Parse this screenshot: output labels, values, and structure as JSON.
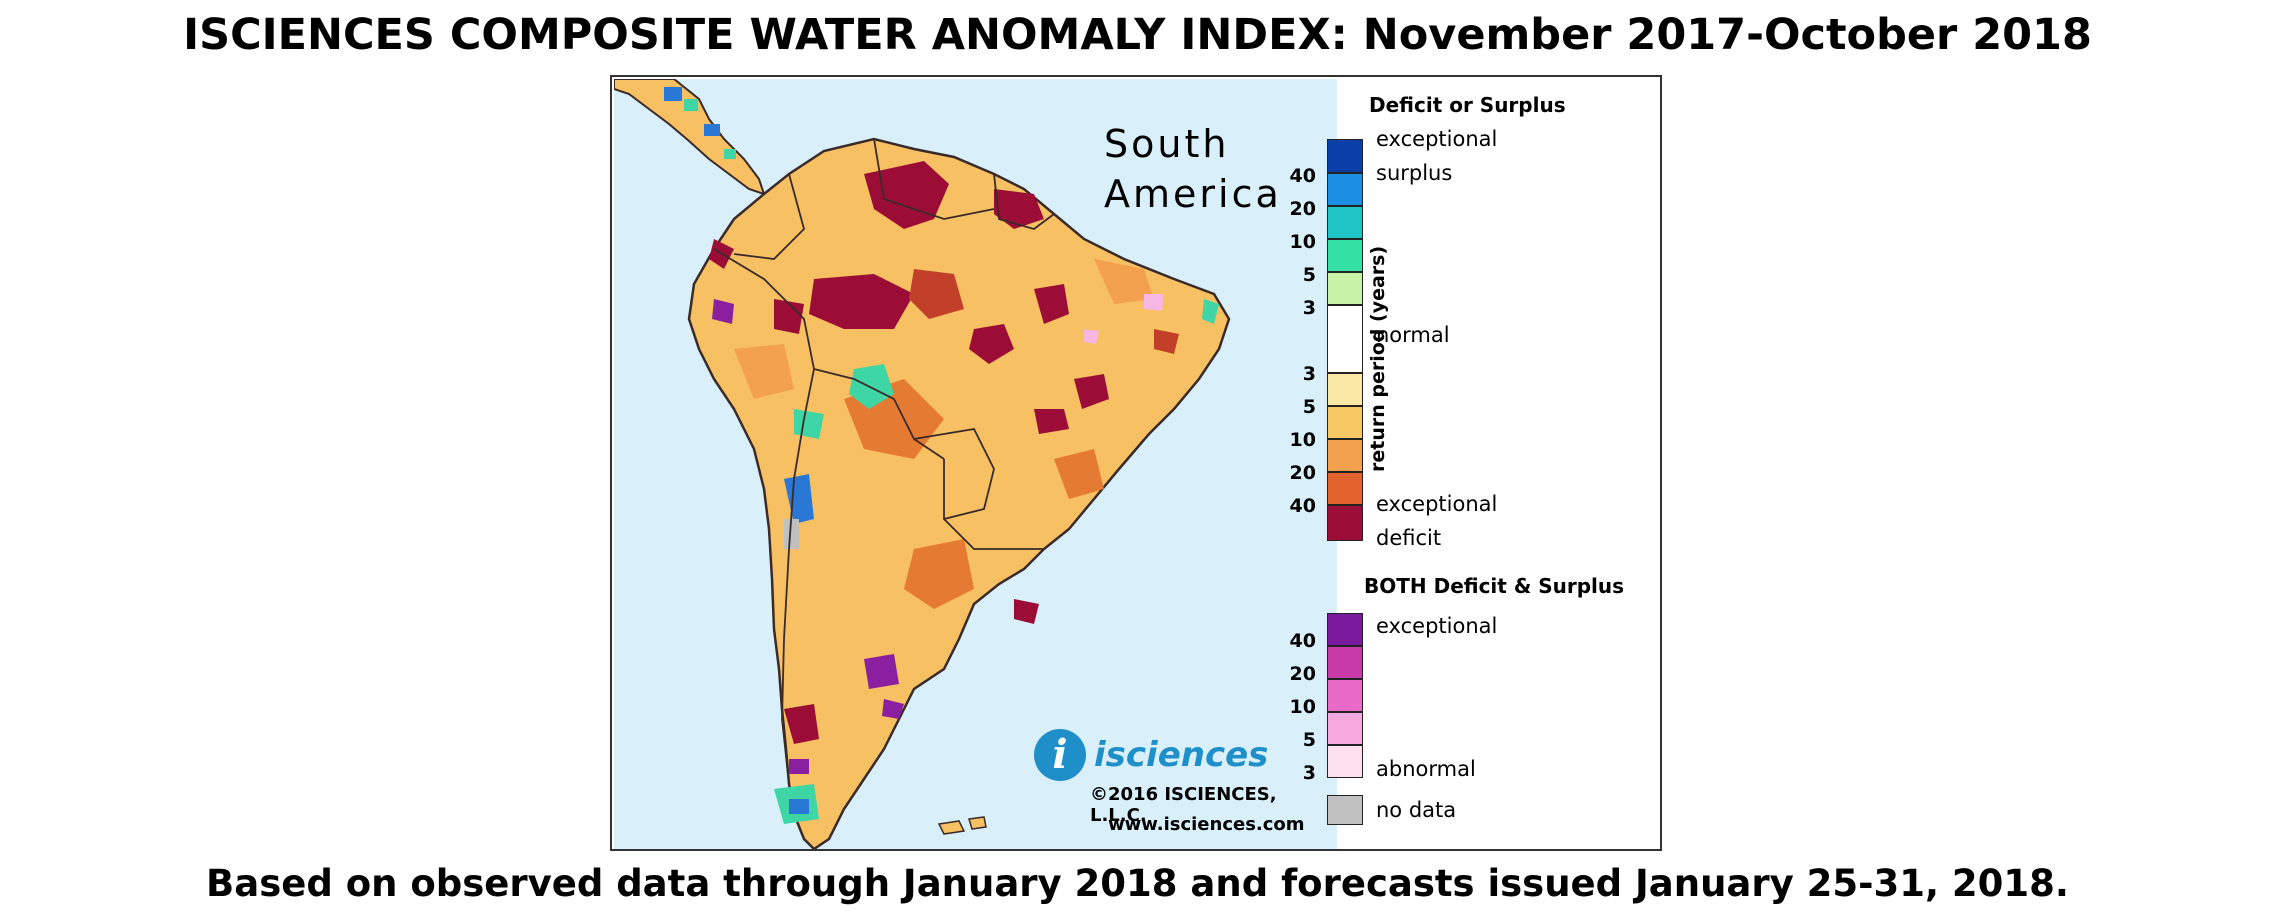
{
  "title": "ISCIENCES COMPOSITE WATER ANOMALY INDEX: November 2017-October 2018",
  "subtitle": "Based on observed data through January 2018 and forecasts issued January 25-31, 2018.",
  "map": {
    "region_label_line1": "South",
    "region_label_line2": "America",
    "logo_text": "isciences",
    "logo_letter": "i",
    "copyright": "©2016 ISCIENCES, L.L.C.",
    "website": "www.isciences.com",
    "colors": {
      "ocean": "#d9f0fb",
      "land_base": "#f6c063",
      "moderate": "#f3a14f",
      "severe": "#e57a33",
      "extreme": "#c2402a",
      "exceptional_deficit": "#9b0d36",
      "surplus_green": "#3fd6a5",
      "surplus_blue": "#2a78d6",
      "both_purple": "#8a1fa0",
      "abnormal_pink": "#f7b7e3",
      "no_data": "#c0c0c0",
      "borders": "#3a2a2a"
    }
  },
  "legend": {
    "deficit_surplus_title": "Deficit or Surplus",
    "axis_label": "return period (years)",
    "surplus_ticks": [
      "40",
      "20",
      "10",
      "5",
      "3"
    ],
    "deficit_ticks": [
      "3",
      "5",
      "10",
      "20",
      "40"
    ],
    "exceptional_surplus_line1": "exceptional",
    "exceptional_surplus_line2": "surplus",
    "normal_label": "normal",
    "exceptional_deficit_line1": "exceptional",
    "exceptional_deficit_line2": "deficit",
    "both_title": "BOTH Deficit & Surplus",
    "both_ticks": [
      "40",
      "20",
      "10",
      "5",
      "3"
    ],
    "both_top_label": "exceptional",
    "both_bottom_label": "abnormal",
    "no_data_label": "no data",
    "surplus_colors": [
      "#0a3fa8",
      "#1a8ee0",
      "#1fc4c4",
      "#35e0a4",
      "#c8f2a8"
    ],
    "deficit_colors": [
      "#fbe7a6",
      "#f8c864",
      "#f3a14f",
      "#e4622e",
      "#9b0d36"
    ],
    "both_colors": [
      "#7a1a9c",
      "#c83aa8",
      "#e86ac6",
      "#f7a8de",
      "#fde0f0"
    ]
  }
}
